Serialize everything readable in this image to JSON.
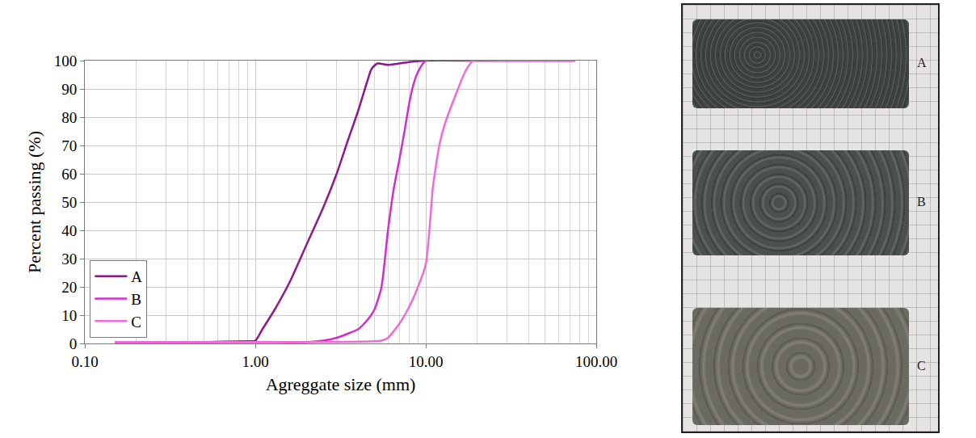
{
  "chart_data": {
    "type": "line",
    "x_label": "Agreggate size (mm)",
    "y_label": "Percent passing (%)",
    "log": "x",
    "grid": true,
    "legend": "lower left",
    "xlim": [
      0.1,
      100
    ],
    "xticks": [
      {
        "value": 0.1,
        "label": "0.10"
      },
      {
        "value": 1,
        "label": "1.00"
      },
      {
        "value": 10,
        "label": "10.00"
      },
      {
        "value": 100,
        "label": "100.00"
      }
    ],
    "ylim": [
      0,
      100
    ],
    "yticks": [
      0,
      10,
      20,
      30,
      40,
      50,
      60,
      70,
      80,
      90,
      100
    ],
    "series": [
      {
        "name": "A",
        "color": "#8e1a8a",
        "x": [
          0.15,
          0.5,
          0.9,
          1.0,
          1.1,
          1.3,
          1.6,
          2.0,
          2.5,
          3.0,
          3.5,
          4.0,
          4.5,
          4.8,
          5.2,
          6.0,
          7.0,
          8.0,
          10.0,
          20.0,
          75.0
        ],
        "values": [
          0.5,
          0.5,
          0.8,
          1,
          5,
          12,
          22,
          35,
          48,
          60,
          72,
          82,
          92,
          97,
          99,
          98.5,
          99,
          99.5,
          100,
          100,
          100
        ]
      },
      {
        "name": "B",
        "color": "#d42ccf",
        "x": [
          0.15,
          1.0,
          2.0,
          2.5,
          3.0,
          3.5,
          4.0,
          4.5,
          5.0,
          5.5,
          6.0,
          6.5,
          7.0,
          7.5,
          8.0,
          8.5,
          9.0,
          10.0,
          20.0,
          75.0
        ],
        "values": [
          0.5,
          0.5,
          0.5,
          1,
          2,
          3.5,
          5,
          8,
          12,
          20,
          40,
          55,
          65,
          75,
          85,
          92,
          96,
          100,
          100,
          100
        ]
      },
      {
        "name": "C",
        "color": "#f26ad6",
        "x": [
          0.15,
          1.0,
          5.5,
          6.0,
          7.0,
          8.0,
          9.0,
          10.0,
          10.5,
          11.0,
          12.0,
          13.0,
          15.0,
          17.0,
          19.0,
          30.0,
          75.0
        ],
        "values": [
          0.5,
          0.5,
          1,
          2,
          7,
          13,
          20,
          28,
          40,
          55,
          70,
          78,
          88,
          96,
          100,
          100,
          100
        ]
      }
    ]
  },
  "photo": {
    "labels": [
      "A",
      "B",
      "C"
    ]
  }
}
